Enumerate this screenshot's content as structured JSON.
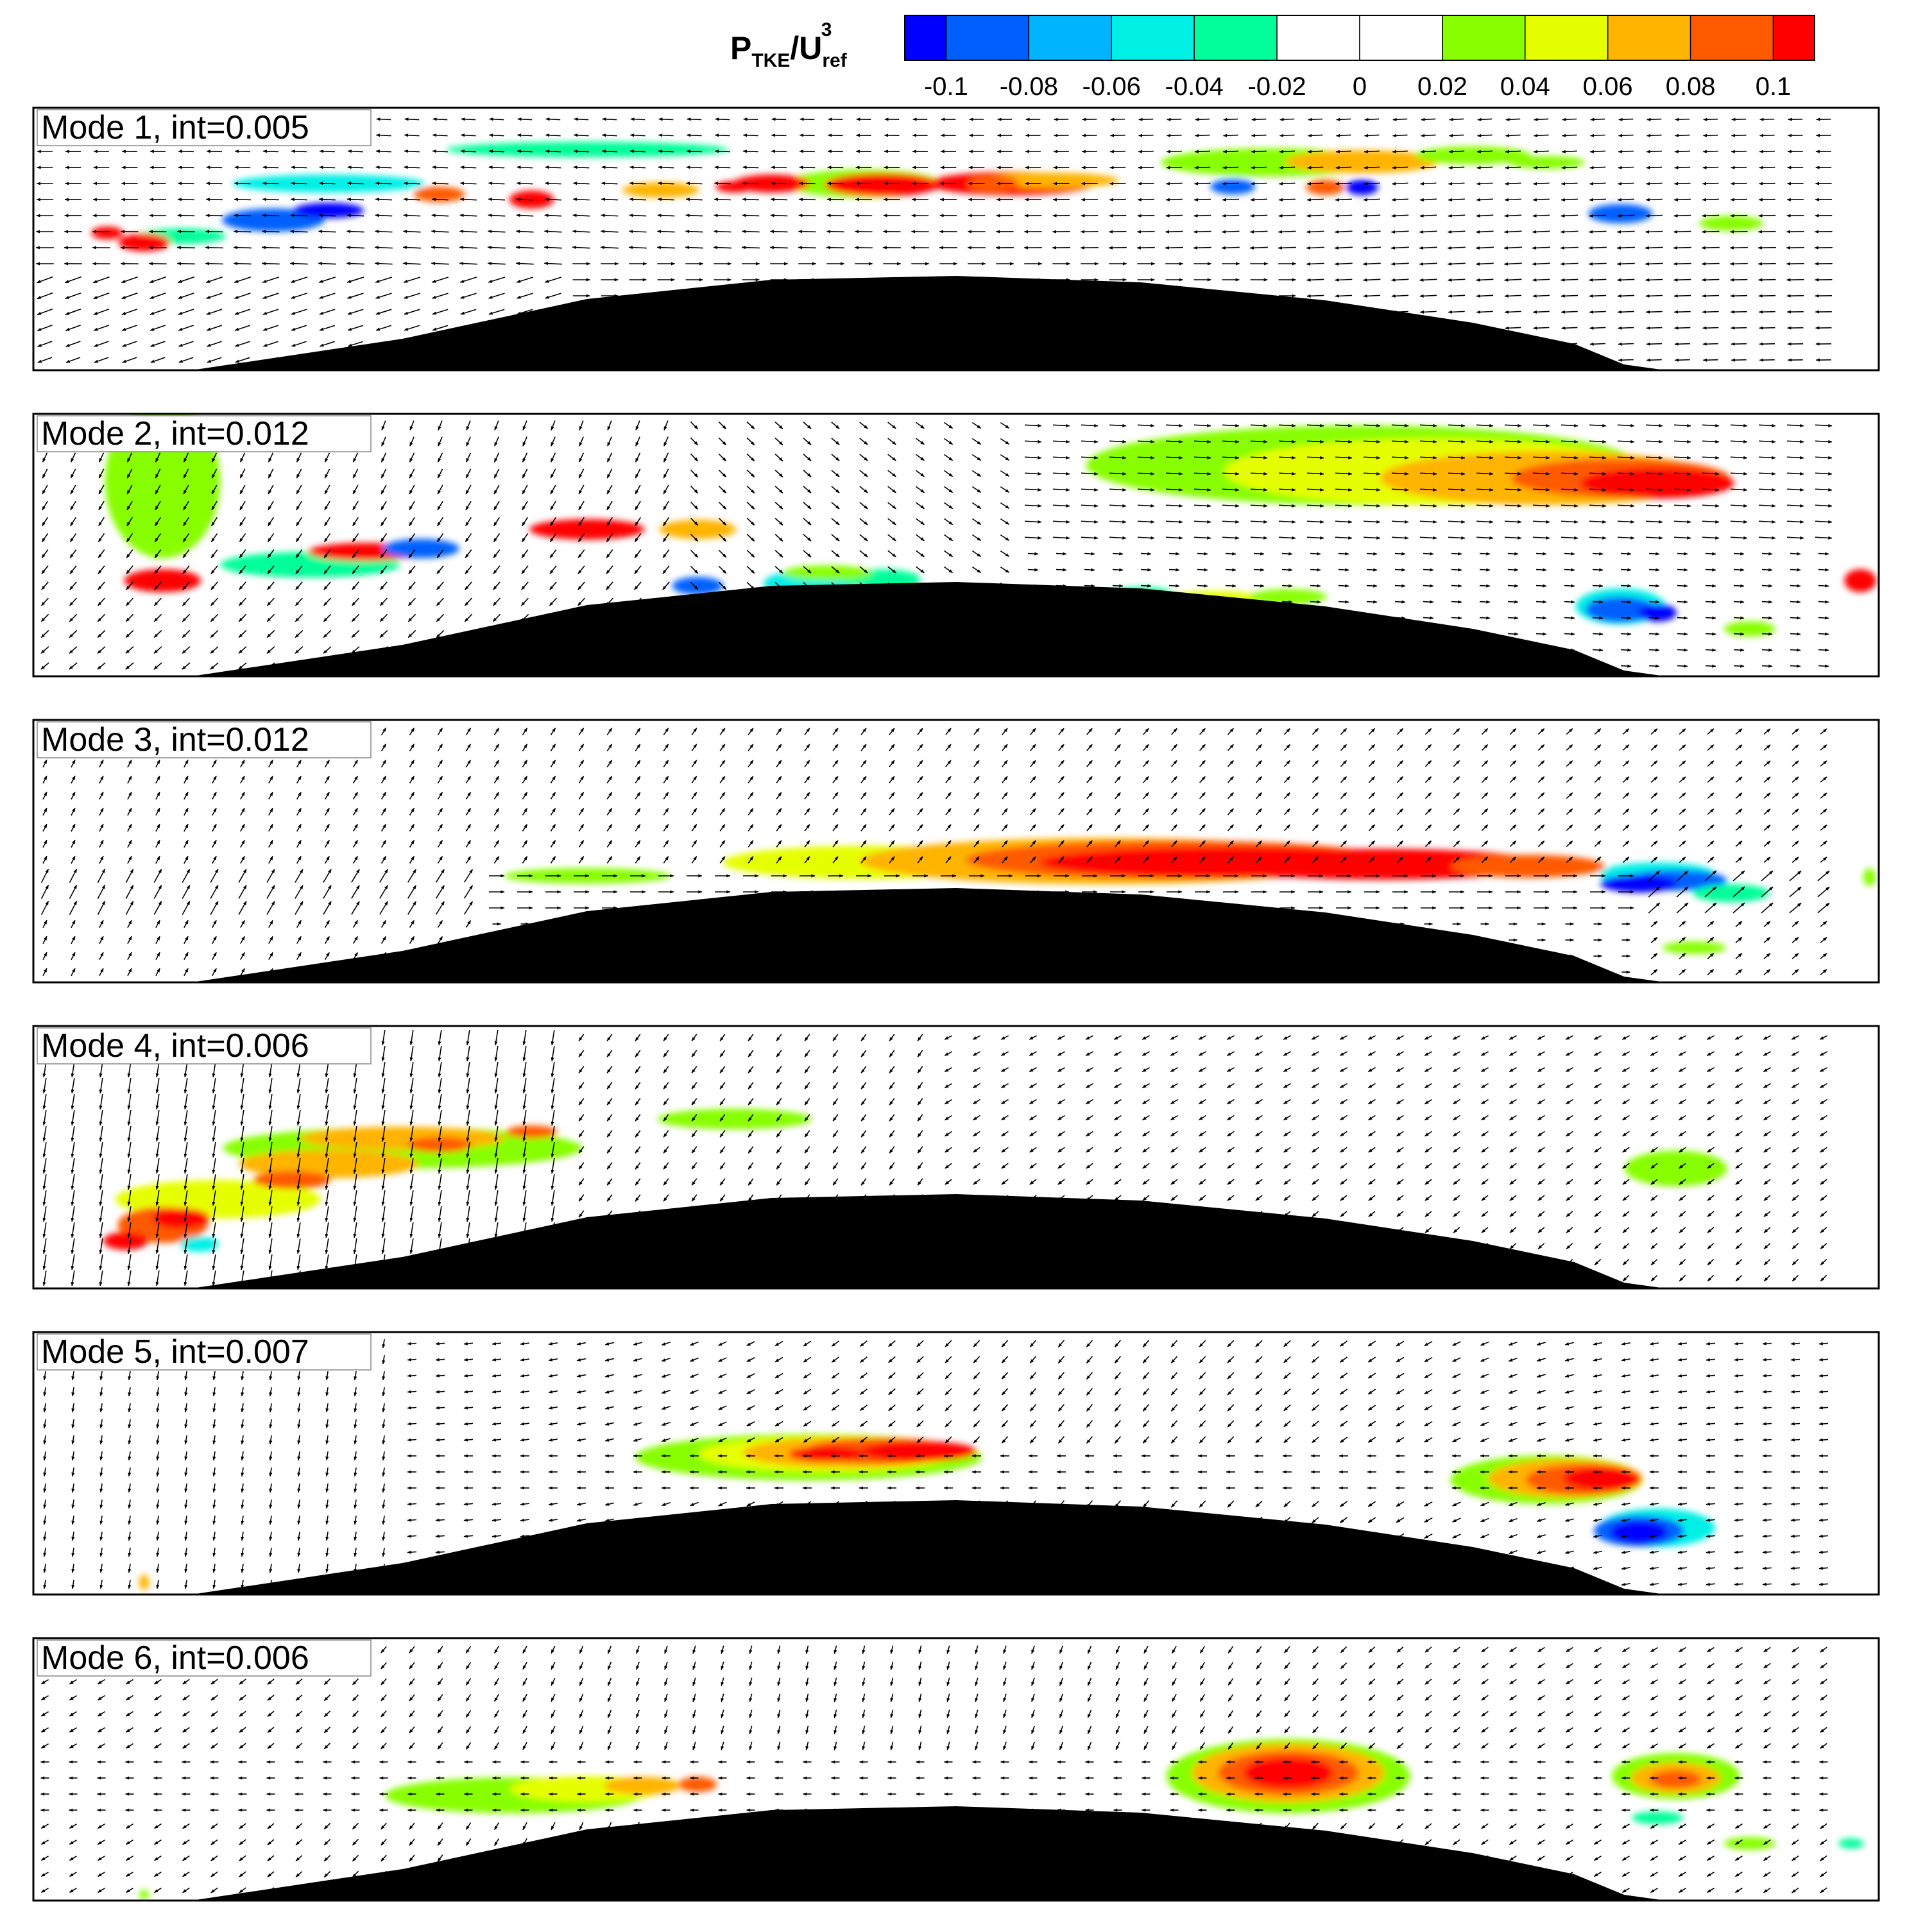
{
  "colorbar": {
    "title_main": "P",
    "title_sub1": "TKE",
    "title_slash": "/U",
    "title_sub2": "ref",
    "title_sup": "3",
    "ticks": [
      "-0.1",
      "-0.08",
      "-0.06",
      "-0.04",
      "-0.02",
      "0",
      "0.02",
      "0.04",
      "0.06",
      "0.08",
      "0.1"
    ],
    "levels": [
      -0.11,
      -0.1,
      -0.08,
      -0.06,
      -0.04,
      -0.02,
      0,
      0.02,
      0.04,
      0.06,
      0.08,
      0.1,
      0.11
    ],
    "colors": [
      "#0000ff",
      "#0060ff",
      "#00b4ff",
      "#00f0e6",
      "#00ff9a",
      "#ffffff",
      "#ffffff",
      "#88ff00",
      "#e6ff00",
      "#ffb400",
      "#ff5a00",
      "#ff0000"
    ]
  },
  "body_color": "#000000",
  "chart_data": [
    {
      "type": "contour",
      "label": "Mode 1, int=0.005"
    },
    {
      "type": "contour",
      "label": "Mode 2, int=0.012"
    },
    {
      "type": "contour",
      "label": "Mode 3, int=0.012"
    },
    {
      "type": "contour",
      "label": "Mode 4, int=0.006"
    },
    {
      "type": "contour",
      "label": "Mode 5, int=0.007"
    },
    {
      "type": "contour",
      "label": "Mode 6, int=0.006"
    }
  ]
}
